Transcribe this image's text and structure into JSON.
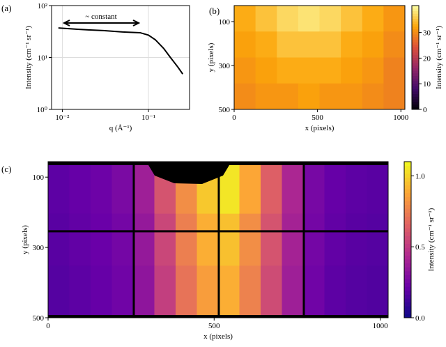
{
  "chart_data": [
    {
      "type": "line",
      "panel_label": "(a)",
      "x_label": "q (Å⁻¹)",
      "y_label": "Intensity (cm⁻¹ sr⁻¹)",
      "annotation": "~ constant",
      "log_x": true,
      "log_y": true,
      "grid": true,
      "color": "#000000",
      "x": [
        0.009,
        0.015,
        0.02,
        0.03,
        0.05,
        0.08,
        0.1,
        0.12,
        0.15,
        0.18,
        0.22,
        0.25
      ],
      "values": [
        37,
        35,
        34,
        33,
        31,
        30,
        27,
        22,
        15,
        10,
        6.5,
        4.8
      ],
      "xlim": [
        0.0075,
        0.3
      ],
      "ylim": [
        1,
        100
      ],
      "xticks": [
        {
          "value": 0.01,
          "label": "10⁻²"
        },
        {
          "value": 0.1,
          "label": "10⁻¹"
        }
      ],
      "yticks": [
        {
          "value": 1,
          "label": "10⁰"
        },
        {
          "value": 10,
          "label": "10¹"
        },
        {
          "value": 100,
          "label": "10²"
        }
      ]
    },
    {
      "type": "heatmap",
      "panel_label": "(b)",
      "x_label": "x (pixels)",
      "y_label": "y (pixels)",
      "colorbar_label": "Intensity (cm⁻¹ sr⁻¹)",
      "colormap": "inferno",
      "z": [
        [
          33,
          35,
          37,
          38,
          37,
          35,
          33,
          31
        ],
        [
          32,
          33,
          35,
          35,
          35,
          33,
          32,
          30
        ],
        [
          31,
          32,
          33,
          33,
          33,
          32,
          31,
          29
        ],
        [
          30,
          31,
          31,
          32,
          31,
          31,
          30,
          29
        ]
      ],
      "xlim": [
        0,
        1024
      ],
      "ylim": [
        27,
        500
      ],
      "xticks": [
        0,
        500,
        1000
      ],
      "yticks": [
        100,
        300,
        500
      ],
      "clim": [
        0,
        40.5
      ],
      "cticks": [
        0,
        10,
        20,
        30
      ]
    },
    {
      "type": "heatmap",
      "panel_label": "(c)",
      "x_label": "x (pixels)",
      "y_label": "y (pixels)",
      "colorbar_label": "Intensity (cm⁻¹ sr⁻¹)",
      "colormap": "plasma",
      "z": [
        [
          0.19,
          0.21,
          0.23,
          0.27,
          0.38,
          0.6,
          0.8,
          0.97,
          1.05,
          0.88,
          0.64,
          0.42,
          0.26,
          0.21,
          0.19,
          0.18
        ],
        [
          0.18,
          0.2,
          0.22,
          0.25,
          0.35,
          0.55,
          0.75,
          0.9,
          0.95,
          0.8,
          0.6,
          0.4,
          0.25,
          0.2,
          0.18,
          0.17
        ],
        [
          0.17,
          0.19,
          0.21,
          0.24,
          0.33,
          0.52,
          0.71,
          0.85,
          0.9,
          0.76,
          0.57,
          0.38,
          0.24,
          0.19,
          0.17,
          0.16
        ]
      ],
      "xlim": [
        0,
        1024
      ],
      "ylim": [
        56,
        500
      ],
      "xticks": [
        0,
        500,
        1000
      ],
      "yticks": [
        100,
        300,
        500
      ],
      "clim": [
        0,
        1.1
      ],
      "cticks": [
        {
          "value": 0,
          "label": "0.0"
        },
        {
          "value": 0.5,
          "label": "0.5"
        },
        {
          "value": 1,
          "label": "1.0"
        }
      ]
    }
  ]
}
